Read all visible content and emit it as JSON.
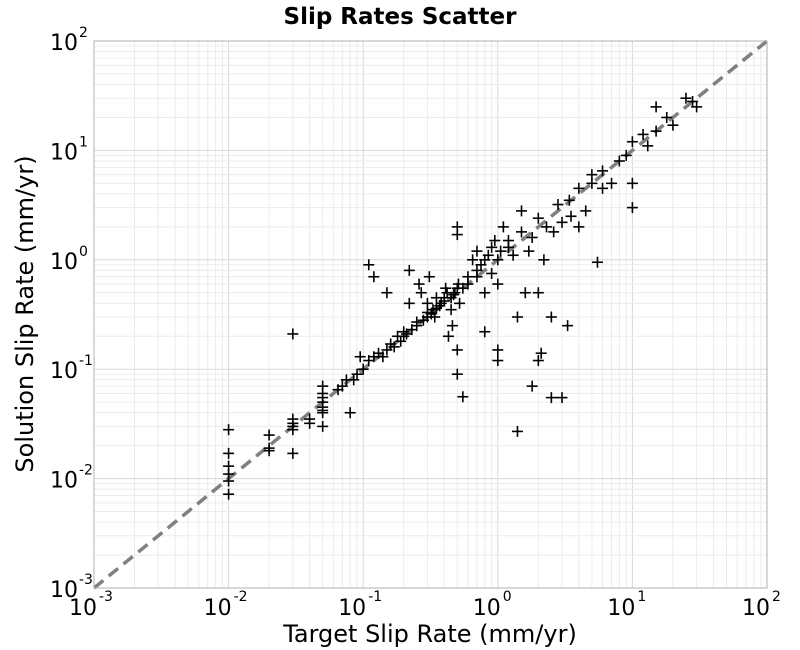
{
  "chart_data": {
    "type": "scatter",
    "title": "Slip Rates Scatter",
    "xlabel": "Target Slip Rate (mm/yr)",
    "ylabel": "Solution Slip Rate (mm/yr)",
    "xscale": "log",
    "yscale": "log",
    "xlim": [
      0.001,
      100
    ],
    "ylim": [
      0.001,
      100
    ],
    "x_ticks": [
      {
        "base": "10",
        "exp": "-3"
      },
      {
        "base": "10",
        "exp": "-2"
      },
      {
        "base": "10",
        "exp": "-1"
      },
      {
        "base": "10",
        "exp": "0"
      },
      {
        "base": "10",
        "exp": "1"
      },
      {
        "base": "10",
        "exp": "2"
      }
    ],
    "y_ticks": [
      {
        "base": "10",
        "exp": "-3"
      },
      {
        "base": "10",
        "exp": "-2"
      },
      {
        "base": "10",
        "exp": "-1"
      },
      {
        "base": "10",
        "exp": "0"
      },
      {
        "base": "10",
        "exp": "1"
      },
      {
        "base": "10",
        "exp": "2"
      }
    ],
    "grid": true,
    "marker": "+",
    "marker_color": "#000000",
    "reference_line": {
      "slope": 1,
      "style": "dashed",
      "color": "#808080"
    },
    "points": [
      [
        0.01,
        0.028
      ],
      [
        0.01,
        0.017
      ],
      [
        0.01,
        0.013
      ],
      [
        0.01,
        0.011
      ],
      [
        0.01,
        0.0095
      ],
      [
        0.01,
        0.0072
      ],
      [
        0.02,
        0.025
      ],
      [
        0.02,
        0.019
      ],
      [
        0.02,
        0.018
      ],
      [
        0.03,
        0.21
      ],
      [
        0.03,
        0.035
      ],
      [
        0.03,
        0.032
      ],
      [
        0.03,
        0.03
      ],
      [
        0.03,
        0.028
      ],
      [
        0.03,
        0.017
      ],
      [
        0.04,
        0.035
      ],
      [
        0.04,
        0.032
      ],
      [
        0.05,
        0.07
      ],
      [
        0.05,
        0.06
      ],
      [
        0.05,
        0.055
      ],
      [
        0.05,
        0.05
      ],
      [
        0.05,
        0.045
      ],
      [
        0.05,
        0.042
      ],
      [
        0.05,
        0.04
      ],
      [
        0.05,
        0.03
      ],
      [
        0.065,
        0.065
      ],
      [
        0.07,
        0.07
      ],
      [
        0.075,
        0.08
      ],
      [
        0.08,
        0.04
      ],
      [
        0.085,
        0.08
      ],
      [
        0.09,
        0.09
      ],
      [
        0.095,
        0.13
      ],
      [
        0.1,
        0.1
      ],
      [
        0.11,
        0.12
      ],
      [
        0.11,
        0.9
      ],
      [
        0.12,
        0.7
      ],
      [
        0.12,
        0.13
      ],
      [
        0.13,
        0.14
      ],
      [
        0.14,
        0.13
      ],
      [
        0.15,
        0.15
      ],
      [
        0.15,
        0.5
      ],
      [
        0.16,
        0.17
      ],
      [
        0.17,
        0.16
      ],
      [
        0.18,
        0.2
      ],
      [
        0.19,
        0.18
      ],
      [
        0.2,
        0.2
      ],
      [
        0.2,
        0.22
      ],
      [
        0.21,
        0.21
      ],
      [
        0.22,
        0.4
      ],
      [
        0.22,
        0.8
      ],
      [
        0.23,
        0.23
      ],
      [
        0.25,
        0.25
      ],
      [
        0.25,
        0.27
      ],
      [
        0.26,
        0.6
      ],
      [
        0.27,
        0.5
      ],
      [
        0.28,
        0.28
      ],
      [
        0.3,
        0.3
      ],
      [
        0.3,
        0.33
      ],
      [
        0.3,
        0.4
      ],
      [
        0.31,
        0.7
      ],
      [
        0.32,
        0.32
      ],
      [
        0.33,
        0.35
      ],
      [
        0.34,
        0.3
      ],
      [
        0.35,
        0.36
      ],
      [
        0.35,
        0.45
      ],
      [
        0.37,
        0.38
      ],
      [
        0.38,
        0.4
      ],
      [
        0.4,
        0.42
      ],
      [
        0.4,
        0.45
      ],
      [
        0.41,
        0.55
      ],
      [
        0.42,
        0.5
      ],
      [
        0.43,
        0.2
      ],
      [
        0.45,
        0.45
      ],
      [
        0.45,
        0.35
      ],
      [
        0.46,
        0.25
      ],
      [
        0.47,
        0.48
      ],
      [
        0.48,
        0.5
      ],
      [
        0.5,
        0.55
      ],
      [
        0.5,
        0.15
      ],
      [
        0.5,
        0.09
      ],
      [
        0.5,
        2.0
      ],
      [
        0.5,
        1.7
      ],
      [
        0.51,
        0.6
      ],
      [
        0.52,
        0.4
      ],
      [
        0.55,
        0.056
      ],
      [
        0.55,
        0.55
      ],
      [
        0.6,
        0.6
      ],
      [
        0.6,
        0.7
      ],
      [
        0.65,
        1.0
      ],
      [
        0.7,
        0.7
      ],
      [
        0.7,
        0.8
      ],
      [
        0.7,
        1.2
      ],
      [
        0.75,
        0.9
      ],
      [
        0.8,
        1.0
      ],
      [
        0.8,
        0.5
      ],
      [
        0.8,
        0.22
      ],
      [
        0.85,
        1.1
      ],
      [
        0.9,
        1.3
      ],
      [
        0.9,
        0.75
      ],
      [
        0.95,
        1.5
      ],
      [
        1.0,
        1.0
      ],
      [
        1.0,
        0.15
      ],
      [
        1.0,
        0.12
      ],
      [
        1.0,
        0.6
      ],
      [
        1.05,
        1.2
      ],
      [
        1.1,
        2.0
      ],
      [
        1.2,
        1.5
      ],
      [
        1.2,
        1.3
      ],
      [
        1.3,
        1.1
      ],
      [
        1.4,
        0.027
      ],
      [
        1.4,
        0.3
      ],
      [
        1.5,
        2.8
      ],
      [
        1.5,
        1.8
      ],
      [
        1.6,
        0.5
      ],
      [
        1.7,
        1.2
      ],
      [
        1.8,
        0.07
      ],
      [
        1.8,
        1.6
      ],
      [
        2.0,
        2.4
      ],
      [
        2.0,
        0.5
      ],
      [
        2.0,
        0.12
      ],
      [
        2.1,
        0.14
      ],
      [
        2.2,
        1.0
      ],
      [
        2.3,
        2.0
      ],
      [
        2.5,
        0.055
      ],
      [
        2.5,
        0.3
      ],
      [
        2.6,
        1.8
      ],
      [
        2.8,
        3.2
      ],
      [
        3.0,
        0.055
      ],
      [
        3.0,
        2.2
      ],
      [
        3.3,
        0.25
      ],
      [
        3.4,
        3.5
      ],
      [
        3.5,
        2.5
      ],
      [
        4.0,
        4.5
      ],
      [
        4.0,
        2.0
      ],
      [
        4.5,
        2.8
      ],
      [
        5.0,
        5.0
      ],
      [
        5.0,
        6.0
      ],
      [
        5.5,
        0.95
      ],
      [
        6.0,
        4.5
      ],
      [
        6.0,
        6.5
      ],
      [
        7.0,
        5.0
      ],
      [
        8.0,
        8.0
      ],
      [
        9.0,
        9.0
      ],
      [
        10.0,
        5.0
      ],
      [
        10.0,
        3.0
      ],
      [
        10.0,
        12.0
      ],
      [
        12.0,
        14.0
      ],
      [
        13.0,
        11.0
      ],
      [
        15.0,
        15.0
      ],
      [
        15.0,
        25.0
      ],
      [
        18.0,
        20.0
      ],
      [
        20.0,
        17.0
      ],
      [
        25.0,
        30.0
      ],
      [
        28.0,
        28.0
      ],
      [
        30.0,
        25.0
      ]
    ]
  }
}
